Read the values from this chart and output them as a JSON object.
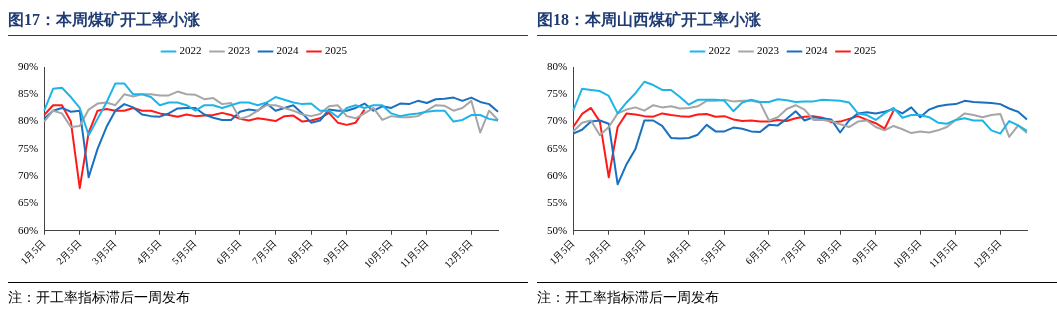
{
  "chart_data": [
    {
      "type": "line",
      "title": "图17：本周煤矿开工率小涨",
      "legend": "top",
      "categories": [
        "1月5日",
        null,
        null,
        null,
        "2月5日",
        null,
        null,
        null,
        "3月5日",
        null,
        null,
        null,
        null,
        "4月5日",
        null,
        null,
        null,
        "5月5日",
        null,
        null,
        null,
        null,
        "6月5日",
        null,
        null,
        null,
        "7月5日",
        null,
        null,
        null,
        "8月5日",
        null,
        null,
        null,
        "9月5日",
        null,
        null,
        null,
        null,
        "10月5日",
        null,
        null,
        null,
        "11月5日",
        null,
        null,
        null,
        null,
        "12月5日",
        null,
        null,
        null
      ],
      "ylim": [
        60,
        90
      ],
      "yticks": [
        {
          "value": 60,
          "label": "60%"
        },
        {
          "value": 65,
          "label": "65%"
        },
        {
          "value": 70,
          "label": "70%"
        },
        {
          "value": 75,
          "label": "75%"
        },
        {
          "value": 80,
          "label": "80%"
        },
        {
          "value": 85,
          "label": "85%"
        },
        {
          "value": 90,
          "label": "90%"
        }
      ],
      "series": [
        {
          "name": "2022",
          "color": "#1fb4e8",
          "values": [
            82,
            86,
            86.2,
            84.5,
            82.5,
            77.5,
            80.5,
            83.5,
            87,
            87,
            85,
            85,
            84.5,
            83,
            83.5,
            83.5,
            83,
            82,
            83,
            83,
            82.5,
            83,
            83.5,
            83.5,
            83,
            83.5,
            84.5,
            84,
            83.5,
            83.2,
            83.3,
            82,
            82,
            80.8,
            82.5,
            83,
            82.5,
            83,
            83,
            81.5,
            81,
            81.3,
            81.5,
            81.8,
            82,
            82,
            80,
            80.3,
            81.2,
            81.2,
            80.5,
            80.2
          ]
        },
        {
          "name": "2023",
          "color": "#a6a6a6",
          "values": [
            80,
            82,
            81.5,
            79,
            79.2,
            82.2,
            83.3,
            83.5,
            83,
            85,
            84.6,
            85,
            85,
            84.8,
            84.8,
            85.5,
            85,
            84.9,
            84.1,
            84.3,
            83.2,
            83.4,
            80.5,
            81,
            82,
            83,
            83,
            82.5,
            82,
            81.3,
            81,
            81.4,
            82.8,
            83,
            81,
            80.6,
            81.5,
            82.5,
            80.3,
            81,
            80.8,
            80.8,
            81,
            82,
            83,
            82.9,
            82,
            82.5,
            83.8,
            78,
            82,
            80.3
          ]
        },
        {
          "name": "2024",
          "color": "#1a6fbf",
          "values": [
            80.5,
            82,
            82.5,
            81.8,
            82,
            69.8,
            75,
            79,
            82,
            83.2,
            82.6,
            81.3,
            81,
            80.9,
            81.5,
            82.4,
            82.5,
            82.5,
            81.3,
            80.7,
            80.3,
            80.3,
            81.8,
            82.2,
            82,
            83.3,
            82,
            82.5,
            83,
            81.5,
            79.8,
            80.2,
            82.2,
            82,
            82,
            82.5,
            83.3,
            82,
            82.8,
            82.5,
            83.3,
            83.2,
            83.8,
            83.4,
            84.1,
            84.2,
            84.4,
            83.8,
            84.4,
            83.6,
            83.2,
            81.8
          ]
        },
        {
          "name": "2025",
          "color": "#ff1a1a",
          "values": [
            81.2,
            83,
            83,
            80,
            67.8,
            78,
            82,
            82.3,
            82,
            82,
            82.5,
            82,
            82,
            81.5,
            81.2,
            80.9,
            81.3,
            81,
            81.1,
            81.2,
            81.6,
            81.2,
            80.5,
            80.2,
            80.6,
            80.4,
            80.1,
            81,
            81.1,
            80,
            80.2,
            80.6,
            81.6,
            79.8,
            79.4,
            79.8,
            82.2,
            null,
            null,
            null,
            null,
            null,
            null,
            null,
            null,
            null,
            null,
            null,
            null,
            null,
            null,
            null
          ]
        }
      ],
      "annotations": [
        "注：开工率指标滞后一周发布"
      ]
    },
    {
      "type": "line",
      "title": "图18：本周山西煤矿开工率小涨",
      "legend": "top",
      "categories": [
        "1月5日",
        null,
        null,
        null,
        "2月5日",
        null,
        null,
        null,
        "3月5日",
        null,
        null,
        null,
        null,
        "4月5日",
        null,
        null,
        null,
        "5月5日",
        null,
        null,
        null,
        null,
        "6月5日",
        null,
        null,
        null,
        "7月5日",
        null,
        null,
        null,
        "8月5日",
        null,
        null,
        null,
        "9月5日",
        null,
        null,
        null,
        null,
        "10月5日",
        null,
        null,
        null,
        "11月5日",
        null,
        null,
        null,
        null,
        "12月5日",
        null,
        null,
        null
      ],
      "ylim": [
        50,
        80
      ],
      "yticks": [
        {
          "value": 50,
          "label": "50%"
        },
        {
          "value": 55,
          "label": "55%"
        },
        {
          "value": 60,
          "label": "60%"
        },
        {
          "value": 65,
          "label": "65%"
        },
        {
          "value": 70,
          "label": "70%"
        },
        {
          "value": 75,
          "label": "75%"
        },
        {
          "value": 80,
          "label": "80%"
        }
      ],
      "series": [
        {
          "name": "2022",
          "color": "#1fb4e8",
          "values": [
            72,
            76,
            75.8,
            75.6,
            74.7,
            71.5,
            73.5,
            75.2,
            77.3,
            76.7,
            75.8,
            75.8,
            74.5,
            73.1,
            74,
            74,
            74,
            73.8,
            71.9,
            73.5,
            74,
            73.6,
            73.6,
            74.1,
            73.9,
            73.6,
            73.7,
            73.7,
            74,
            73.9,
            73.8,
            73.5,
            71.5,
            71.2,
            70.3,
            71.5,
            72.5,
            70.7,
            71.2,
            71.2,
            70.8,
            69.8,
            69.6,
            70.3,
            70.6,
            70.2,
            70.2,
            68.4,
            67.8,
            70.1,
            69.3,
            68.3
          ]
        },
        {
          "name": "2023",
          "color": "#a6a6a6",
          "values": [
            68.2,
            69.8,
            70.2,
            67.5,
            69,
            71.5,
            72.2,
            72.6,
            72,
            73,
            72.6,
            72.8,
            72.4,
            72.5,
            72.8,
            73.8,
            73.8,
            74,
            73.7,
            73.8,
            73.8,
            73.5,
            70.2,
            70.8,
            72.3,
            73,
            72.2,
            70.3,
            70.3,
            70.1,
            69.5,
            69,
            70,
            70.2,
            69,
            68.4,
            69.2,
            68.6,
            67.9,
            68.2,
            68,
            68.4,
            69,
            70.3,
            71.5,
            71.2,
            70.8,
            71.2,
            71.4,
            67.2,
            69.3,
            67.9
          ]
        },
        {
          "name": "2024",
          "color": "#1a6fbf",
          "values": [
            67.8,
            68.5,
            70,
            70.2,
            69.6,
            58.5,
            62.2,
            65,
            70.2,
            70.2,
            69.2,
            67,
            66.9,
            67,
            67.6,
            69.4,
            68.2,
            68.2,
            68.9,
            68.7,
            68.2,
            68.1,
            69.4,
            69.3,
            70.5,
            71.9,
            70.2,
            70.8,
            70.6,
            70.4,
            68,
            70.2,
            71.5,
            71.7,
            71.5,
            71.8,
            72.3,
            71.5,
            72.6,
            70.8,
            72.2,
            72.8,
            73.1,
            73.2,
            73.8,
            73.6,
            73.5,
            73.4,
            73.2,
            72.4,
            71.8,
            70.4
          ]
        },
        {
          "name": "2025",
          "color": "#ff1a1a",
          "values": [
            69,
            71.4,
            72.5,
            70,
            59.8,
            69,
            71.5,
            71.3,
            71,
            70.9,
            71.5,
            71.2,
            71,
            70.9,
            71.3,
            71.4,
            70.9,
            71,
            70.4,
            70.1,
            70.2,
            70,
            70,
            70.3,
            70.1,
            70.6,
            70.9,
            71,
            70.7,
            69.9,
            70,
            70.5,
            71,
            70.3,
            69.7,
            68.7,
            72,
            null,
            null,
            null,
            null,
            null,
            null,
            null,
            null,
            null,
            null,
            null,
            null,
            null,
            null,
            null
          ]
        }
      ],
      "annotations": [
        "注：开工率指标滞后一周发布"
      ]
    }
  ]
}
